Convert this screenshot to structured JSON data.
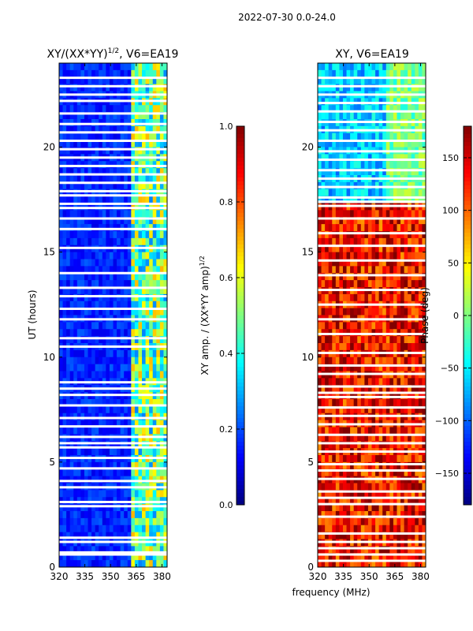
{
  "figure_title": "2022-07-30 0.0-24.0",
  "shared_xlabel": "frequency (MHz)",
  "chart_data": [
    {
      "type": "heatmap",
      "title_main": "XY/(XX*YY)",
      "title_sup": "1/2",
      "title_rest": ", V6=EA19",
      "xlabel": "",
      "ylabel": "UT (hours)",
      "xlim": [
        320,
        383
      ],
      "ylim": [
        0,
        24
      ],
      "xticks": [
        320,
        335,
        350,
        365,
        380
      ],
      "yticks": [
        0,
        5,
        10,
        15,
        20
      ],
      "colorbar": {
        "label_main": "XY amp. / (XX*YY amp)",
        "label_sup": "1/2",
        "range": [
          0.0,
          1.0
        ],
        "ticks": [
          "0.0",
          "0.2",
          "0.4",
          "0.6",
          "0.8",
          "1.0"
        ],
        "colormap": "jet"
      },
      "features": {
        "bright_band_mhz": [
          363,
          383
        ],
        "background_level": 0.1,
        "band_level": 0.5,
        "flagged_rows_ut": [
          23.3,
          22.9,
          22.5,
          22.2,
          21.6,
          21.1,
          20.7,
          20.3,
          19.9,
          19.5,
          19.1,
          18.7,
          18.3,
          17.9,
          17.7,
          17.3,
          17.1,
          16.6,
          16.1,
          15.2,
          14.0,
          13.3,
          12.9,
          12.3,
          11.8,
          10.9,
          10.5,
          8.8,
          8.5,
          8.2,
          7.7,
          7.1,
          6.7,
          6.2,
          5.9,
          5.7,
          5.2,
          4.7,
          4.1,
          3.8,
          3.1,
          2.9,
          1.4,
          1.2,
          0.7,
          0.6
        ]
      }
    },
    {
      "type": "heatmap",
      "title_main": "XY, V6=EA19",
      "xlabel": "frequency (MHz)",
      "ylabel": "",
      "xlim": [
        320,
        383
      ],
      "ylim": [
        0,
        24
      ],
      "xticks": [
        320,
        335,
        350,
        365,
        380
      ],
      "yticks": [
        0,
        5,
        10,
        15,
        20
      ],
      "colorbar": {
        "label_main": "Phase (deg)",
        "range": [
          -180,
          180
        ],
        "ticks": [
          "−150",
          "−100",
          "−50",
          "0",
          "50",
          "100",
          "150"
        ],
        "colormap": "jet"
      },
      "features": {
        "early_phase_deg": 140,
        "late_phase_deg": -100,
        "flagged_rows_ut": [
          23.3,
          22.9,
          22.5,
          22.1,
          21.7,
          21.2,
          20.8,
          20.3,
          19.8,
          19.4,
          18.9,
          18.5,
          18.1,
          17.6,
          17.4,
          17.2,
          16.6,
          15.9,
          15.3,
          14.6,
          13.9,
          13.2,
          12.5,
          11.8,
          11.1,
          10.2,
          9.6,
          9.2,
          8.6,
          8.3,
          8.1,
          7.6,
          7.2,
          6.8,
          6.3,
          5.9,
          5.5,
          4.9,
          4.6,
          4.2,
          3.6,
          3.3,
          3.0,
          2.4,
          1.6,
          1.2,
          0.9,
          0.6,
          0.3
        ]
      }
    }
  ]
}
